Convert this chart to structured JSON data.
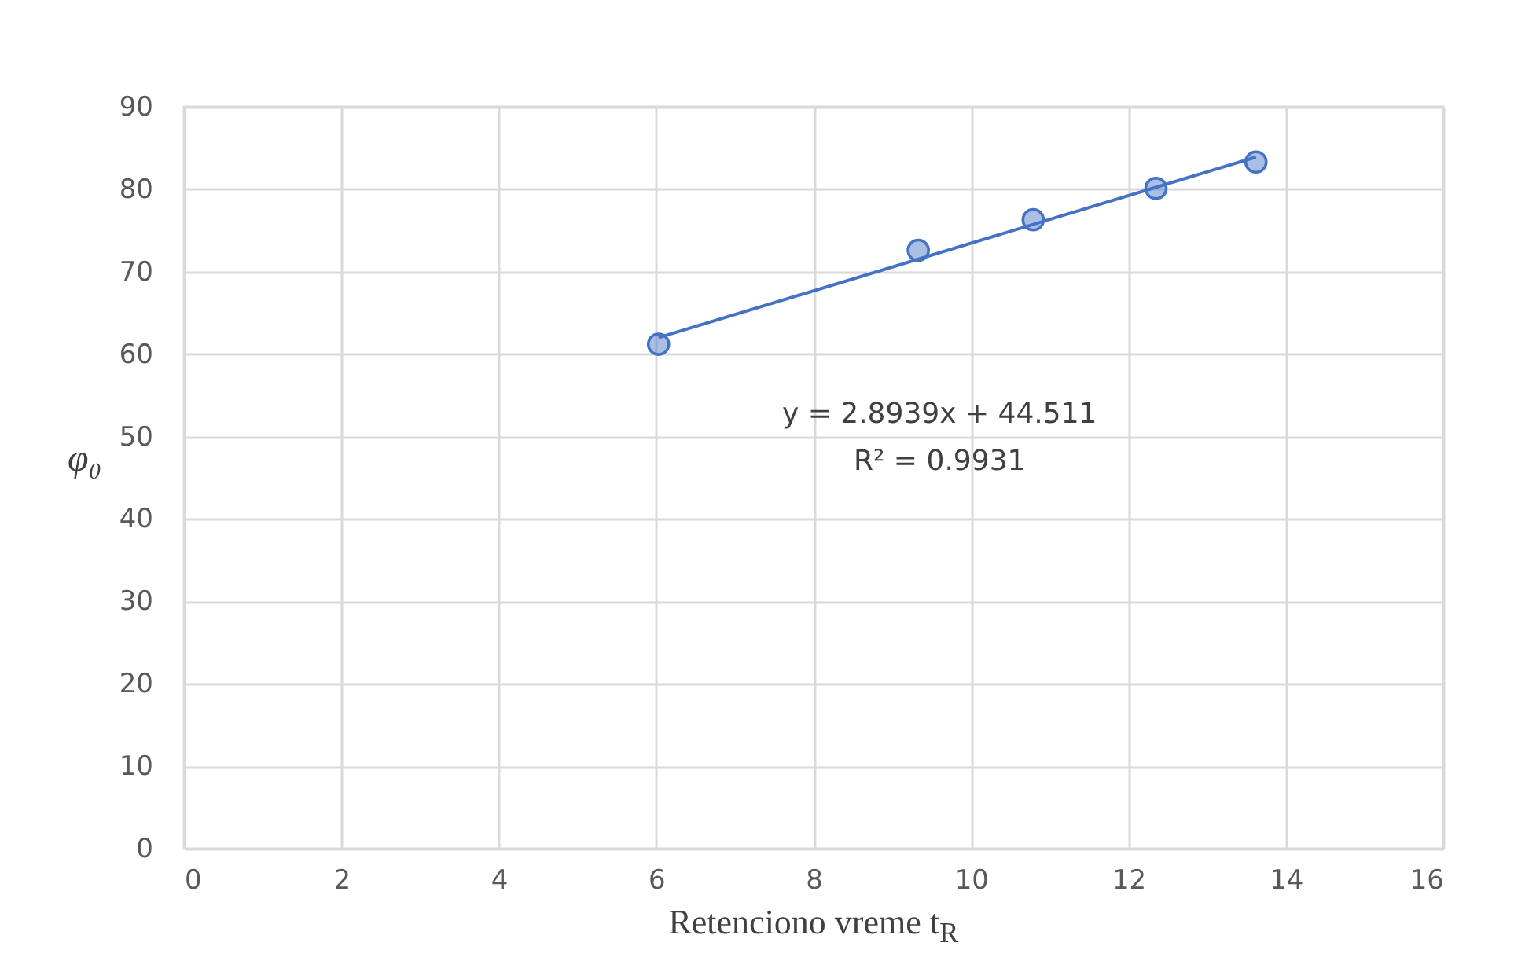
{
  "chart_data": {
    "type": "scatter",
    "xlabel": "Retenciono vreme t$_{R}$",
    "ylabel": "φ₀",
    "xlim": [
      0,
      16
    ],
    "xticks": [
      0,
      2,
      4,
      6,
      8,
      10,
      12,
      14,
      16
    ],
    "ylim": [
      0,
      90
    ],
    "yticks": [
      0,
      10,
      20,
      30,
      40,
      50,
      60,
      70,
      80,
      90
    ],
    "grid": true,
    "marker": "circle",
    "series": [
      {
        "color": "#4472c4",
        "x": [
          6.03,
          9.33,
          10.79,
          12.35,
          13.62
        ],
        "values": [
          61.2,
          72.6,
          76.3,
          80.1,
          83.3
        ]
      },
      {
        "type": "line",
        "marker": "none",
        "color": "#4472c4",
        "x": [
          6.03,
          13.62
        ],
        "values": [
          62.0,
          83.9
        ]
      }
    ],
    "annotations": [
      "y = 2.8939x + 44.511",
      "R² = 0.9931"
    ]
  }
}
